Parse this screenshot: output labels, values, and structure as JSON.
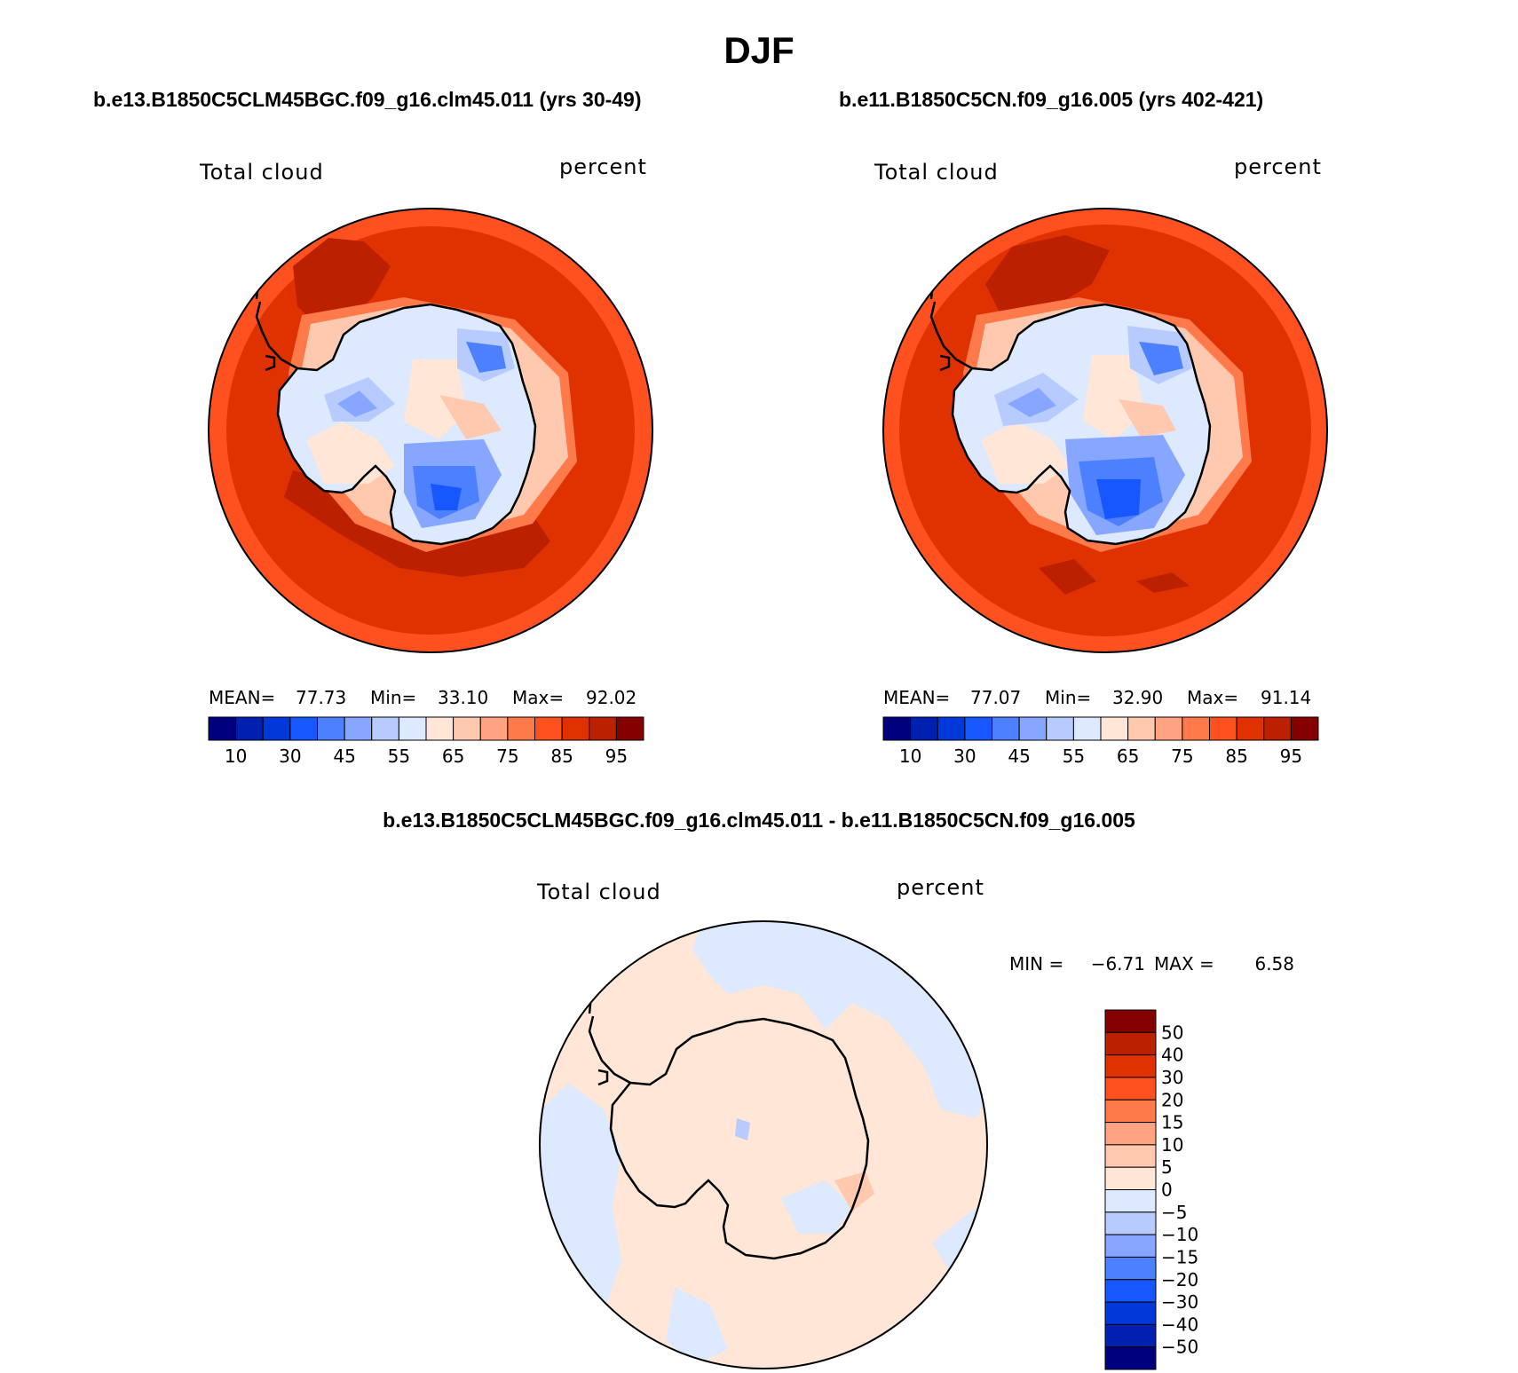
{
  "figure": {
    "season": "DJF",
    "left_case": "b.e13.B1850C5CLM45BGC.f09_g16.clm45.011 (yrs 30-49)",
    "right_case": "b.e11.B1850C5CN.f09_g16.005 (yrs 402-421)",
    "diff_title": "b.e13.B1850C5CLM45BGC.f09_g16.clm45.011 - b.e11.B1850C5CN.f09_g16.005"
  },
  "chart_data": [
    {
      "type": "polar_contour_map",
      "id": "left",
      "variable": "Total cloud",
      "units": "percent",
      "mean_label": "MEAN=",
      "min_label": "Min=",
      "max_label": "Max=",
      "mean": "77.73",
      "min": "33.10",
      "max": "92.02",
      "levels": [
        5,
        10,
        20,
        30,
        40,
        45,
        50,
        55,
        60,
        65,
        70,
        75,
        80,
        85,
        90,
        95
      ],
      "tick_labels": [
        "10",
        "30",
        "45",
        "55",
        "65",
        "75",
        "85",
        "95"
      ],
      "colors": [
        "#00007f",
        "#0021b0",
        "#0038d9",
        "#1657ff",
        "#4c80ff",
        "#86a6ff",
        "#b8cbff",
        "#dce9ff",
        "#ffe6d6",
        "#ffc9b0",
        "#ffa383",
        "#ff7a4b",
        "#ff501f",
        "#e03200",
        "#bb2000",
        "#850000"
      ]
    },
    {
      "type": "polar_contour_map",
      "id": "right",
      "variable": "Total cloud",
      "units": "percent",
      "mean_label": "MEAN=",
      "min_label": "Min=",
      "max_label": "Max=",
      "mean": "77.07",
      "min": "32.90",
      "max": "91.14",
      "levels": [
        5,
        10,
        20,
        30,
        40,
        45,
        50,
        55,
        60,
        65,
        70,
        75,
        80,
        85,
        90,
        95
      ],
      "tick_labels": [
        "10",
        "30",
        "45",
        "55",
        "65",
        "75",
        "85",
        "95"
      ],
      "colors": [
        "#00007f",
        "#0021b0",
        "#0038d9",
        "#1657ff",
        "#4c80ff",
        "#86a6ff",
        "#b8cbff",
        "#dce9ff",
        "#ffe6d6",
        "#ffc9b0",
        "#ffa383",
        "#ff7a4b",
        "#ff501f",
        "#e03200",
        "#bb2000",
        "#850000"
      ]
    },
    {
      "type": "polar_contour_map",
      "id": "difference",
      "variable": "Total cloud",
      "units": "percent",
      "min_label": "MIN =",
      "max_label": "MAX =",
      "min": "−6.71",
      "max": "6.58",
      "tick_labels": [
        "50",
        "40",
        "30",
        "20",
        "15",
        "10",
        "5",
        "0",
        "−5",
        "−10",
        "−15",
        "−20",
        "−30",
        "−40",
        "−50"
      ],
      "colors": [
        "#850000",
        "#bb2000",
        "#e03200",
        "#ff501f",
        "#ff7a4b",
        "#ffa383",
        "#ffc9b0",
        "#ffe6d6",
        "#dce9ff",
        "#b8cbff",
        "#86a6ff",
        "#4c80ff",
        "#1657ff",
        "#0038d9",
        "#0021b0",
        "#00007f"
      ]
    }
  ]
}
